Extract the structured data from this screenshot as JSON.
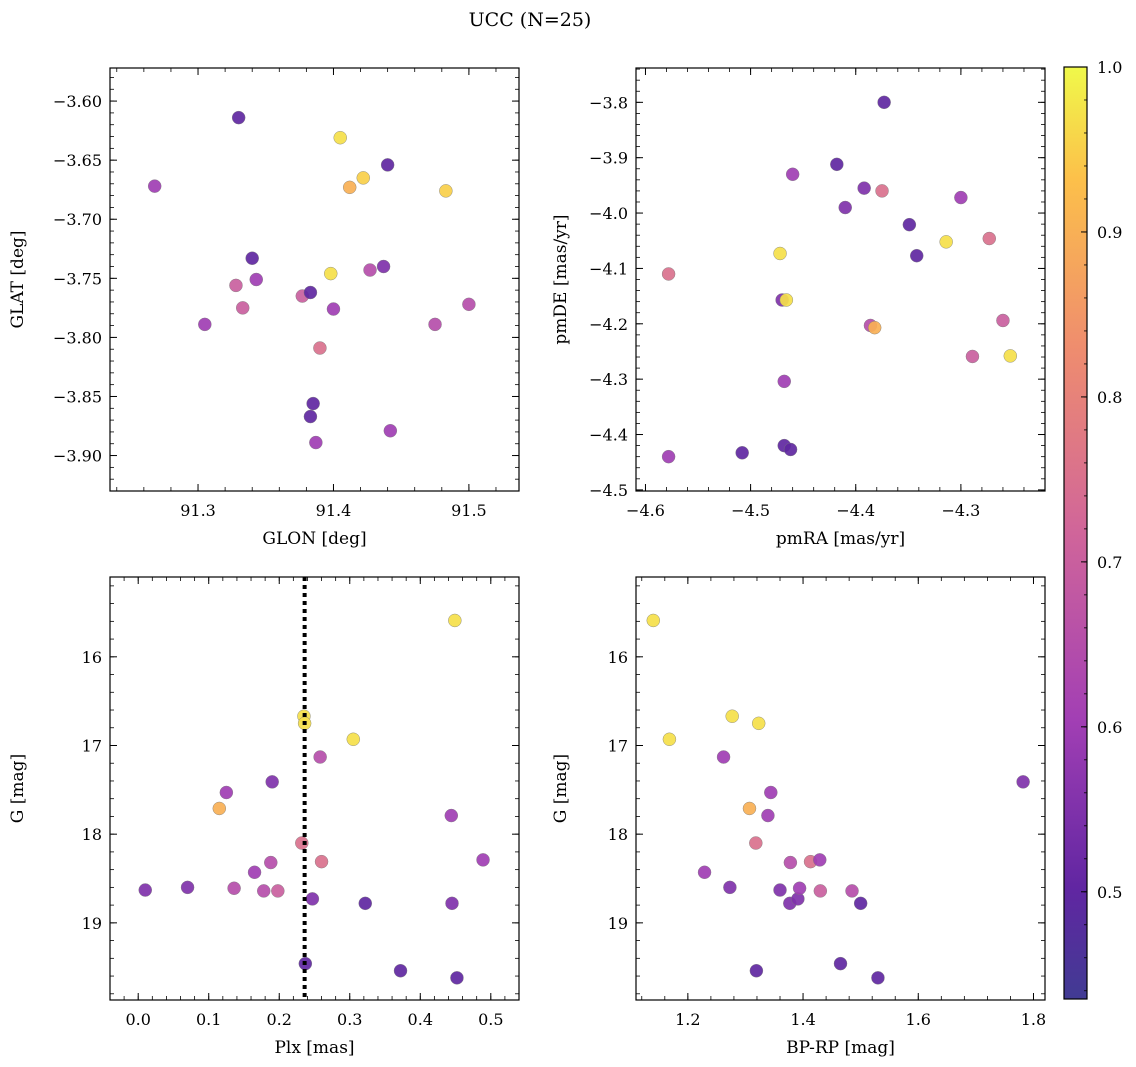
{
  "title": "UCC (N=25)",
  "colorbar": {
    "range": [
      0.435,
      1.0
    ],
    "ticks": [
      0.5,
      0.6,
      0.7,
      0.8,
      0.9,
      1.0
    ],
    "tick_labels": [
      "0.5",
      "0.6",
      "0.7",
      "0.8",
      "0.9",
      "1.0"
    ],
    "colormap": "plasma"
  },
  "chart_data": [
    {
      "type": "scatter",
      "xlabel": "GLON [deg]",
      "ylabel": "GLAT [deg]",
      "xlim": [
        91.235,
        91.537
      ],
      "ylim": [
        -3.93,
        -3.572
      ],
      "xticks": [
        91.3,
        91.4,
        91.5
      ],
      "xtick_labels": [
        "91.3",
        "91.4",
        "91.5"
      ],
      "yticks": [
        -3.6,
        -3.65,
        -3.7,
        -3.75,
        -3.8,
        -3.85,
        -3.9
      ],
      "ytick_labels": [
        "−3.60",
        "−3.65",
        "−3.70",
        "−3.75",
        "−3.80",
        "−3.85",
        "−3.90"
      ],
      "x": [
        91.268,
        91.305,
        91.33,
        91.333,
        91.34,
        91.343,
        91.377,
        91.383,
        91.385,
        91.383,
        91.387,
        91.39,
        91.398,
        91.4,
        91.405,
        91.412,
        91.422,
        91.427,
        91.437,
        91.44,
        91.442,
        91.475,
        91.483,
        91.5,
        91.328
      ],
      "y": [
        -3.672,
        -3.789,
        -3.614,
        -3.775,
        -3.733,
        -3.751,
        -3.765,
        -3.762,
        -3.856,
        -3.867,
        -3.889,
        -3.809,
        -3.746,
        -3.776,
        -3.631,
        -3.673,
        -3.665,
        -3.743,
        -3.74,
        -3.654,
        -3.879,
        -3.789,
        -3.676,
        -3.772,
        -3.756
      ]
    },
    {
      "type": "scatter",
      "xlabel": "pmRA [mas/yr]",
      "ylabel": "pmDE [mas/yr]",
      "xlim": [
        -4.609,
        -4.22
      ],
      "ylim": [
        -4.502,
        -3.738
      ],
      "xticks": [
        -4.6,
        -4.5,
        -4.4,
        -4.3
      ],
      "xtick_labels": [
        "−4.6",
        "−4.5",
        "−4.4",
        "−4.3"
      ],
      "yticks": [
        -3.8,
        -3.9,
        -4.0,
        -4.1,
        -4.2,
        -4.3,
        -4.4,
        -4.5
      ],
      "ytick_labels": [
        "−3.8",
        "−3.9",
        "−4.0",
        "−4.1",
        "−4.2",
        "−4.3",
        "−4.4",
        "−4.5"
      ],
      "x": [
        -4.578,
        -4.578,
        -4.508,
        -4.472,
        -4.47,
        -4.468,
        -4.468,
        -4.466,
        -4.462,
        -4.46,
        -4.418,
        -4.41,
        -4.392,
        -4.386,
        -4.382,
        -4.375,
        -4.373,
        -4.349,
        -4.342,
        -4.314,
        -4.3,
        -4.289,
        -4.273,
        -4.26,
        -4.253
      ],
      "y": [
        -4.11,
        -4.44,
        -4.433,
        -4.073,
        -4.157,
        -4.42,
        -4.304,
        -4.157,
        -4.427,
        -3.93,
        -3.912,
        -3.99,
        -3.955,
        -4.203,
        -4.207,
        -3.96,
        -3.8,
        -4.021,
        -4.077,
        -4.052,
        -3.972,
        -4.259,
        -4.046,
        -4.194,
        -4.258
      ]
    },
    {
      "type": "scatter",
      "xlabel": "Plx [mas]",
      "ylabel": "G [mag]",
      "xlim": [
        -0.04,
        0.54
      ],
      "ylim": [
        19.87,
        15.1
      ],
      "invert_y": true,
      "vline": 0.236,
      "xticks": [
        0.0,
        0.1,
        0.2,
        0.3,
        0.4,
        0.5
      ],
      "xtick_labels": [
        "0.0",
        "0.1",
        "0.2",
        "0.3",
        "0.4",
        "0.5"
      ],
      "yticks": [
        16,
        17,
        18,
        19
      ],
      "ytick_labels": [
        "16",
        "17",
        "18",
        "19"
      ],
      "x": [
        0.01,
        0.07,
        0.115,
        0.125,
        0.136,
        0.165,
        0.178,
        0.188,
        0.19,
        0.198,
        0.232,
        0.235,
        0.236,
        0.237,
        0.247,
        0.258,
        0.26,
        0.305,
        0.322,
        0.372,
        0.444,
        0.445,
        0.449,
        0.452,
        0.489
      ],
      "y": [
        18.63,
        18.6,
        17.71,
        17.53,
        18.61,
        18.43,
        18.64,
        18.32,
        17.41,
        18.64,
        18.1,
        16.67,
        16.75,
        19.46,
        18.73,
        17.13,
        18.31,
        16.93,
        18.78,
        19.54,
        17.79,
        18.78,
        15.59,
        19.62,
        18.29
      ]
    },
    {
      "type": "scatter",
      "xlabel": "BP-RP [mag]",
      "ylabel": "G [mag]",
      "xlim": [
        1.11,
        1.82
      ],
      "ylim": [
        19.87,
        15.1
      ],
      "invert_y": true,
      "xticks": [
        1.2,
        1.4,
        1.6,
        1.8
      ],
      "xtick_labels": [
        "1.2",
        "1.4",
        "1.6",
        "1.8"
      ],
      "yticks": [
        16,
        17,
        18,
        19
      ],
      "ytick_labels": [
        "16",
        "17",
        "18",
        "19"
      ],
      "x": [
        1.14,
        1.168,
        1.229,
        1.262,
        1.273,
        1.277,
        1.307,
        1.318,
        1.319,
        1.323,
        1.339,
        1.344,
        1.36,
        1.377,
        1.378,
        1.391,
        1.394,
        1.413,
        1.429,
        1.43,
        1.465,
        1.485,
        1.5,
        1.53,
        1.782
      ],
      "y": [
        15.59,
        16.93,
        18.43,
        17.13,
        18.6,
        16.67,
        17.71,
        18.1,
        19.54,
        16.75,
        17.79,
        17.53,
        18.63,
        18.78,
        18.32,
        18.73,
        18.61,
        18.31,
        18.29,
        18.64,
        19.46,
        18.64,
        18.78,
        19.62,
        17.41
      ]
    }
  ]
}
